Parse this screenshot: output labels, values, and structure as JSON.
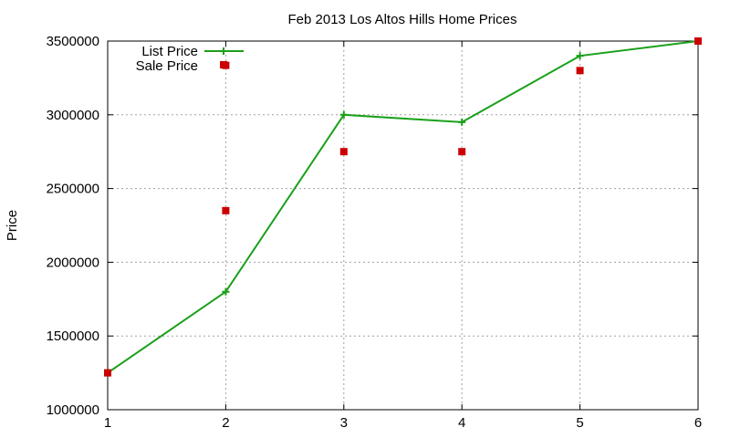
{
  "chart_data": {
    "type": "line",
    "title": "Feb 2013 Los Altos Hills Home Prices",
    "xlabel": "",
    "ylabel": "Price",
    "xlim": [
      1,
      6
    ],
    "ylim": [
      1000000,
      3500000
    ],
    "x_ticks": [
      "1",
      "2",
      "3",
      "4",
      "5",
      "6"
    ],
    "y_ticks": [
      "1000000",
      "1500000",
      "2000000",
      "2500000",
      "3000000",
      "3500000"
    ],
    "grid": true,
    "legend_position": "top-left",
    "series": [
      {
        "name": "List Price",
        "style": "line-with-plus-markers",
        "color": "#1aa01a",
        "x": [
          1,
          2,
          3,
          4,
          5,
          6
        ],
        "y": [
          1250000,
          1800000,
          3000000,
          2950000,
          3400000,
          3500000
        ]
      },
      {
        "name": "Sale Price",
        "style": "square-markers",
        "color": "#cc0000",
        "x": [
          1,
          2,
          2,
          3,
          4,
          5,
          6
        ],
        "y": [
          1250000,
          3335000,
          2350000,
          2750000,
          2750000,
          3300000,
          3500000
        ]
      }
    ]
  }
}
